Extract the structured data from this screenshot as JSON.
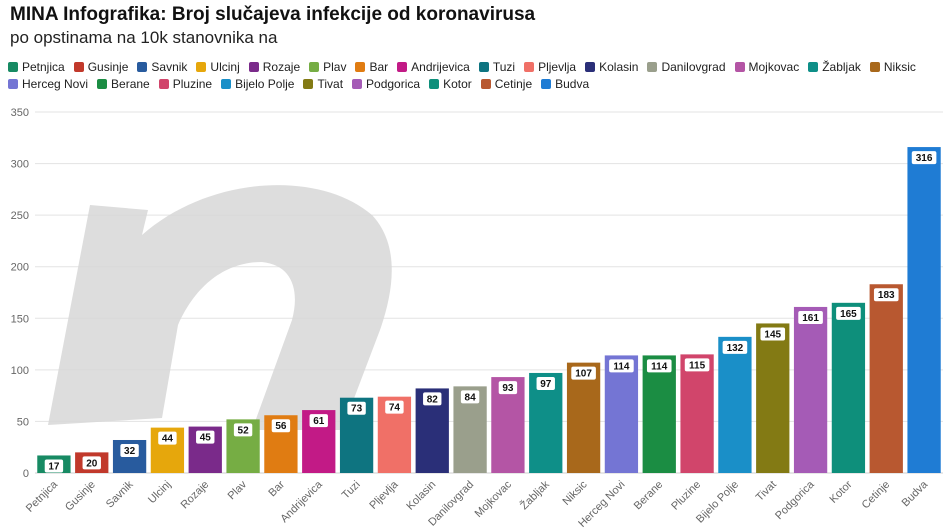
{
  "header": {
    "title": "MINA Infografika: Broj slučajeva infekcije od koronavirusa",
    "subtitle": "po opstinama na 10k stanovnika na"
  },
  "chart_data": {
    "type": "bar",
    "categories": [
      "Petnjica",
      "Gusinje",
      "Savnik",
      "Ulcinj",
      "Rozaje",
      "Plav",
      "Bar",
      "Andrijevica",
      "Tuzi",
      "Pljevlja",
      "Kolasin",
      "Danilovgrad",
      "Mojkovac",
      "Žabljak",
      "Niksic",
      "Herceg Novi",
      "Berane",
      "Pluzine",
      "Bijelo Polje",
      "Tivat",
      "Podgorica",
      "Kotor",
      "Cetinje",
      "Budva"
    ],
    "values": [
      17,
      20,
      32,
      44,
      45,
      52,
      56,
      61,
      73,
      74,
      82,
      84,
      93,
      97,
      107,
      114,
      114,
      115,
      132,
      145,
      161,
      165,
      183,
      316
    ],
    "colors": [
      "#178a63",
      "#c1392b",
      "#285b9e",
      "#e6a70c",
      "#7a2a8a",
      "#76ad44",
      "#e07c12",
      "#c21a86",
      "#0e7480",
      "#f07067",
      "#2a2f78",
      "#9a9f8c",
      "#b455a5",
      "#0e8f88",
      "#a8681b",
      "#7475d4",
      "#1b8d43",
      "#d1456b",
      "#1a8fc8",
      "#837a14",
      "#a55bb6",
      "#0e8f7b",
      "#b85830",
      "#1f7cd4"
    ],
    "legend": [
      "Petnjica",
      "Gusinje",
      "Savnik",
      "Ulcinj",
      "Rozaje",
      "Plav",
      "Bar",
      "Andrijevica",
      "Tuzi",
      "Pljevlja",
      "Kolasin",
      "Danilovgrad",
      "Mojkovac",
      "Žabljak",
      "Niksic",
      "Herceg Novi",
      "Berane",
      "Pluzine",
      "Bijelo Polje",
      "Tivat",
      "Podgorica",
      "Kotor",
      "Cetinje",
      "Budva"
    ],
    "ylim": [
      0,
      350
    ],
    "yticks": [
      0,
      50,
      100,
      150,
      200,
      250,
      300,
      350
    ],
    "grid": true,
    "legend_position": "top",
    "watermark": "m-logo"
  }
}
